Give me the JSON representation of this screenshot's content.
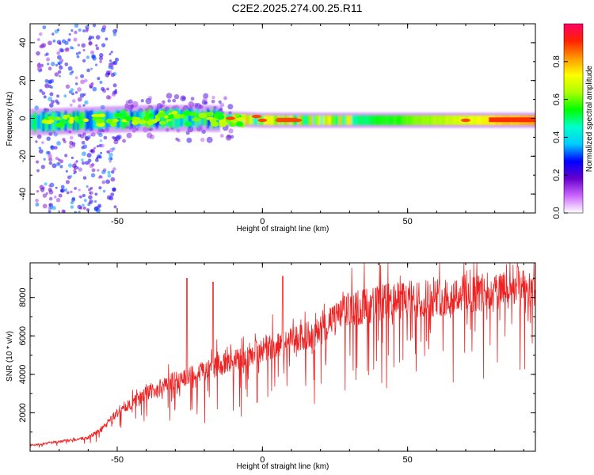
{
  "title": "C2E2.2025.274.00.25.R11",
  "chart_data": [
    {
      "type": "heatmap",
      "name": "spectrogram",
      "xlabel": "Height of straight line (km)",
      "ylabel": "Frequency (Hz)",
      "xlim": [
        -80,
        94
      ],
      "ylim": [
        -50,
        50
      ],
      "xticks": [
        -50,
        0,
        50
      ],
      "yticks": [
        -40,
        -20,
        0,
        20,
        40
      ],
      "colorbar": {
        "label": "Normalized spectral amplitude",
        "range": [
          0,
          1
        ],
        "ticks": [
          "0.0",
          "0.2",
          "0.4",
          "0.6",
          "0.8"
        ],
        "colors": [
          "#ffffff",
          "#cc66ff",
          "#6600cc",
          "#0000ff",
          "#00ccff",
          "#00ffcc",
          "#00ff00",
          "#aaff00",
          "#ffff00",
          "#ff9900",
          "#ff2200",
          "#ff0066"
        ]
      },
      "center_frequency_track": [
        {
          "x": -80,
          "f": -2
        },
        {
          "x": -60,
          "f": -1
        },
        {
          "x": -40,
          "f": 0
        },
        {
          "x": -20,
          "f": 0
        },
        {
          "x": 0,
          "f": -1
        },
        {
          "x": 20,
          "f": -1
        },
        {
          "x": 40,
          "f": -1
        },
        {
          "x": 60,
          "f": -1
        },
        {
          "x": 94,
          "f": -1
        }
      ]
    },
    {
      "type": "line",
      "name": "snr",
      "xlabel": "Height of straight line (km)",
      "ylabel": "SNR (10 * v/v)",
      "xlim": [
        -80,
        94
      ],
      "ylim": [
        0,
        9800
      ],
      "xticks": [
        -50,
        0,
        50
      ],
      "yticks": [
        2000,
        4000,
        6000,
        8000
      ],
      "color": "#ee2222",
      "envelope": [
        {
          "x": -80,
          "y": 300
        },
        {
          "x": -70,
          "y": 500
        },
        {
          "x": -60,
          "y": 700
        },
        {
          "x": -55,
          "y": 1200
        },
        {
          "x": -50,
          "y": 2000
        },
        {
          "x": -40,
          "y": 3000
        },
        {
          "x": -30,
          "y": 3700
        },
        {
          "x": -20,
          "y": 4200
        },
        {
          "x": -10,
          "y": 4700
        },
        {
          "x": 0,
          "y": 5300
        },
        {
          "x": 10,
          "y": 5700
        },
        {
          "x": 20,
          "y": 6300
        },
        {
          "x": 30,
          "y": 7400
        },
        {
          "x": 40,
          "y": 7700
        },
        {
          "x": 50,
          "y": 7900
        },
        {
          "x": 60,
          "y": 8000
        },
        {
          "x": 70,
          "y": 8200
        },
        {
          "x": 80,
          "y": 8300
        },
        {
          "x": 94,
          "y": 8400
        }
      ],
      "notable_peaks": [
        {
          "x": -26,
          "y": 9000
        },
        {
          "x": -17,
          "y": 8800
        },
        {
          "x": 7,
          "y": 9100
        },
        {
          "x": 88,
          "y": 9600
        }
      ]
    }
  ]
}
